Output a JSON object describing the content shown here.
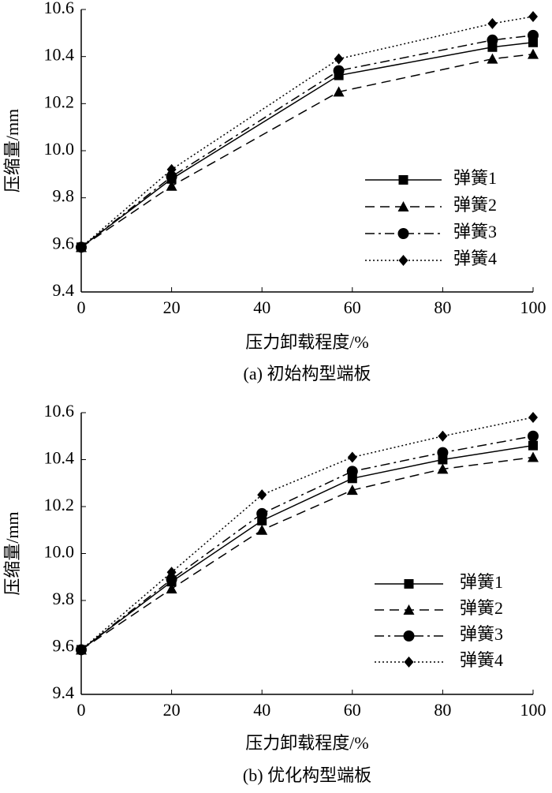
{
  "chart_data": [
    {
      "type": "line",
      "ylabel": "压缩量/mm",
      "xlabel": "压力卸载程度/%",
      "caption": "(a)  初始构型端板",
      "x": [
        0,
        20,
        57,
        91,
        100
      ],
      "series": [
        {
          "name": "弹簧1",
          "color": "#000000",
          "dash": "solid",
          "marker": "square",
          "values": [
            9.59,
            9.88,
            10.32,
            10.44,
            10.46
          ]
        },
        {
          "name": "弹簧2",
          "color": "#000000",
          "dash": "dashed",
          "marker": "triangle",
          "values": [
            9.59,
            9.85,
            10.25,
            10.39,
            10.41
          ]
        },
        {
          "name": "弹簧3",
          "color": "#000000",
          "dash": "dashdot",
          "marker": "circle",
          "values": [
            9.59,
            9.89,
            10.34,
            10.47,
            10.49
          ]
        },
        {
          "name": "弹簧4",
          "color": "#000000",
          "dash": "dotted",
          "marker": "diamond",
          "values": [
            9.59,
            9.92,
            10.39,
            10.54,
            10.57
          ]
        }
      ],
      "xlim": [
        0,
        100
      ],
      "xticks": [
        0,
        20,
        40,
        60,
        80,
        100
      ],
      "ylim": [
        9.4,
        10.6
      ],
      "yticks": [
        9.4,
        9.6,
        9.8,
        {
          "value": 10,
          "label": "10.0"
        },
        10.2,
        10.4,
        10.6
      ],
      "legend": "lower right"
    },
    {
      "type": "line",
      "ylabel": "压缩量/mm",
      "xlabel": "压力卸载程度/%",
      "caption": "(b)  优化构型端板",
      "x": [
        0,
        20,
        40,
        60,
        80,
        100
      ],
      "series": [
        {
          "name": "弹簧1",
          "color": "#000000",
          "dash": "solid",
          "marker": "square",
          "values": [
            9.59,
            9.88,
            10.14,
            10.32,
            10.4,
            10.46
          ]
        },
        {
          "name": "弹簧2",
          "color": "#000000",
          "dash": "dashed",
          "marker": "triangle",
          "values": [
            9.59,
            9.85,
            10.1,
            10.27,
            10.36,
            10.41
          ]
        },
        {
          "name": "弹簧3",
          "color": "#000000",
          "dash": "dashdot",
          "marker": "circle",
          "values": [
            9.59,
            9.89,
            10.17,
            10.35,
            10.43,
            10.5
          ]
        },
        {
          "name": "弹簧4",
          "color": "#000000",
          "dash": "dotted",
          "marker": "diamond",
          "values": [
            9.59,
            9.92,
            10.25,
            10.41,
            10.5,
            10.58
          ]
        }
      ],
      "xlim": [
        0,
        100
      ],
      "xticks": [
        0,
        20,
        40,
        60,
        80,
        100
      ],
      "ylim": [
        9.4,
        10.6
      ],
      "yticks": [
        9.4,
        9.6,
        9.8,
        {
          "value": 10,
          "label": "10.0"
        },
        10.2,
        10.4,
        10.6
      ],
      "legend": "lower right"
    }
  ]
}
